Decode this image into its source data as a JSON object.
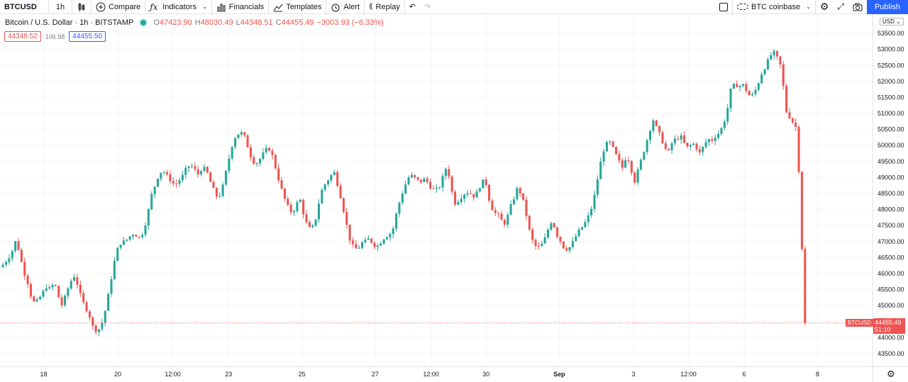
{
  "toolbar": {
    "symbol": "BTCUSD",
    "interval": "1h",
    "compare": "Compare",
    "indicators": "Indicators",
    "financials": "Financials",
    "templates": "Templates",
    "alert": "Alert",
    "replay": "Replay",
    "exchange": "BTC coinbase",
    "publish": "Publish"
  },
  "legend": {
    "title": "Bitcoin / U.S. Dollar · 1h · BITSTAMP",
    "o_key": "O",
    "o_val": "47423.90",
    "h_key": "H",
    "h_val": "48030.49",
    "l_key": "L",
    "l_val": "44348.51",
    "c_key": "C",
    "c_val": "44455.49",
    "change": "−3003.93 (−6.33%)",
    "bid": "44348.52",
    "spread": "106.98",
    "ask": "44455.50"
  },
  "price_axis": {
    "currency": "USD",
    "last_price": "44455.49",
    "countdown": "51:10",
    "symbol_tag": "BTCUSD"
  },
  "colors": {
    "up": "#26a69a",
    "down": "#ef5350",
    "accent": "#2962ff"
  },
  "chart_data": {
    "type": "candlestick",
    "y_ticks": [
      53500,
      53000,
      52500,
      52000,
      51500,
      51000,
      50500,
      50000,
      49500,
      49000,
      48500,
      48000,
      47500,
      47000,
      46500,
      46000,
      45500,
      45000,
      44500,
      44000,
      43500
    ],
    "y_tick_labels": [
      "53500.00",
      "53000.00",
      "52500.00",
      "52000.00",
      "51500.00",
      "51000.00",
      "50500.00",
      "50000.00",
      "49500.00",
      "49000.00",
      "48500.00",
      "48000.00",
      "47500.00",
      "47000.00",
      "46500.00",
      "46000.00",
      "45500.00",
      "45000.00",
      "44500.00",
      "44000.00",
      "43500.00"
    ],
    "x_labels": [
      "18",
      "20",
      "12:00",
      "23",
      "25",
      "27",
      "12:00",
      "30",
      "Sep",
      "3",
      "12:00",
      "6",
      "8"
    ],
    "x_label_pos": [
      0.05,
      0.135,
      0.198,
      0.262,
      0.346,
      0.43,
      0.494,
      0.557,
      0.641,
      0.726,
      0.789,
      0.853,
      0.937
    ],
    "ylim": [
      43100,
      54100
    ],
    "last_price": 44455.49,
    "series": [
      46200,
      46300,
      46450,
      46650,
      47000,
      46700,
      46100,
      45800,
      45300,
      45050,
      45200,
      45400,
      45600,
      45500,
      45750,
      45300,
      45000,
      45350,
      45700,
      45950,
      45650,
      45200,
      44950,
      44700,
      44300,
      44200,
      44350,
      44800,
      45400,
      46100,
      46700,
      46950,
      47000,
      47100,
      47250,
      47200,
      47100,
      47350,
      47850,
      48450,
      48800,
      49150,
      49200,
      49050,
      48900,
      48750,
      48900,
      49050,
      49300,
      49400,
      49250,
      49100,
      49300,
      49250,
      48900,
      48600,
      48350,
      48550,
      49100,
      49650,
      50150,
      50350,
      50400,
      50250,
      49850,
      49500,
      49450,
      49600,
      49800,
      49950,
      49700,
      49250,
      48800,
      48400,
      48100,
      47900,
      48050,
      48400,
      47900,
      47500,
      47350,
      47600,
      48200,
      48700,
      48850,
      49050,
      49150,
      48700,
      48200,
      47600,
      47050,
      46800,
      46750,
      46950,
      47000,
      47100,
      46900,
      46850,
      47000,
      47150,
      47200,
      47350,
      47900,
      48350,
      48700,
      49000,
      49050,
      48950,
      48850,
      48950,
      48850,
      48650,
      48600,
      48700,
      49050,
      49400,
      48650,
      48200,
      48300,
      48450,
      48550,
      48500,
      48400,
      48600,
      48900,
      48800,
      48200,
      47900,
      47850,
      47650,
      47550,
      48000,
      48300,
      48650,
      48500,
      48050,
      47400,
      47000,
      46800,
      46850,
      47050,
      47400,
      47700,
      47250,
      47050,
      46800,
      46750,
      46900,
      47150,
      47350,
      47500,
      47700,
      48000,
      48500,
      49200,
      49800,
      50050,
      50100,
      49800,
      49550,
      49300,
      49650,
      49500,
      48800,
      49200,
      49600,
      50000,
      50450,
      50800,
      50500,
      50250,
      49900,
      49800,
      50150,
      50200,
      50300,
      50050,
      49900,
      50100,
      49950,
      49750,
      50000,
      50200,
      50150,
      50300,
      50400,
      50650,
      51100,
      51800,
      51900,
      51850,
      51900,
      51700,
      51500,
      51650,
      51950,
      52300,
      52500,
      52800,
      52900,
      52700,
      52400,
      51100,
      50900,
      50700,
      50500,
      47400,
      44455
    ]
  }
}
